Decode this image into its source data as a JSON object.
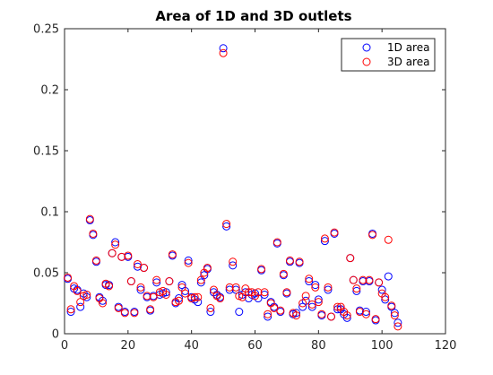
{
  "chart_data": {
    "type": "scatter",
    "title": "Area of 1D and 3D outlets",
    "xlabel": "",
    "ylabel": "",
    "xlim": [
      0,
      120
    ],
    "ylim": [
      0,
      0.25
    ],
    "x_ticks": [
      0,
      20,
      40,
      60,
      80,
      100,
      120
    ],
    "y_ticks": [
      0,
      0.05,
      0.1,
      0.15,
      0.2,
      0.25
    ],
    "x_tick_labels": [
      "0",
      "20",
      "40",
      "60",
      "80",
      "100",
      "120"
    ],
    "y_tick_labels": [
      "0",
      "0.05",
      "0.1",
      "0.15",
      "0.2",
      "0.25"
    ],
    "grid": false,
    "legend_position": "top-right",
    "marker": "open-circle",
    "series": [
      {
        "name": "1D area",
        "color": "#0000ff",
        "x": [
          1,
          2,
          3,
          4,
          5,
          6,
          7,
          8,
          9,
          10,
          11,
          12,
          13,
          14,
          15,
          16,
          17,
          18,
          19,
          20,
          21,
          22,
          23,
          24,
          25,
          26,
          27,
          28,
          29,
          30,
          31,
          32,
          33,
          34,
          35,
          36,
          37,
          38,
          39,
          40,
          41,
          42,
          43,
          44,
          45,
          46,
          47,
          48,
          49,
          50,
          51,
          52,
          53,
          54,
          55,
          56,
          57,
          58,
          59,
          60,
          61,
          62,
          63,
          64,
          65,
          66,
          67,
          68,
          69,
          70,
          71,
          72,
          73,
          74,
          75,
          76,
          77,
          78,
          79,
          80,
          81,
          82,
          83,
          84,
          85,
          86,
          87,
          88,
          89,
          90,
          91,
          92,
          93,
          94,
          95,
          96,
          97,
          98,
          99,
          100,
          101,
          102,
          103,
          104,
          105
        ],
        "y": [
          0.045,
          0.018,
          0.037,
          0.036,
          0.022,
          0.033,
          0.03,
          0.093,
          0.081,
          0.059,
          0.03,
          0.027,
          0.04,
          0.04,
          0.066,
          0.075,
          0.022,
          0.063,
          0.018,
          0.063,
          0.043,
          0.018,
          0.055,
          0.036,
          0.054,
          0.03,
          0.019,
          0.031,
          0.042,
          0.032,
          0.033,
          0.034,
          0.043,
          0.064,
          0.025,
          0.029,
          0.04,
          0.035,
          0.06,
          0.03,
          0.028,
          0.026,
          0.042,
          0.048,
          0.053,
          0.018,
          0.034,
          0.032,
          0.03,
          0.234,
          0.088,
          0.036,
          0.056,
          0.036,
          0.018,
          0.032,
          0.034,
          0.029,
          0.032,
          0.033,
          0.029,
          0.052,
          0.032,
          0.014,
          0.026,
          0.022,
          0.074,
          0.018,
          0.048,
          0.033,
          0.059,
          0.016,
          0.017,
          0.058,
          0.022,
          0.027,
          0.043,
          0.022,
          0.04,
          0.028,
          0.015,
          0.076,
          0.036,
          0.014,
          0.082,
          0.02,
          0.02,
          0.016,
          0.013,
          0.062,
          0.044,
          0.035,
          0.019,
          0.043,
          0.018,
          0.043,
          0.082,
          0.011,
          0.042,
          0.036,
          0.028,
          0.047,
          0.022,
          0.017,
          0.009
        ]
      },
      {
        "name": "3D area",
        "color": "#ff0000",
        "x": [
          1,
          2,
          3,
          4,
          5,
          6,
          7,
          8,
          9,
          10,
          11,
          12,
          13,
          14,
          15,
          16,
          17,
          18,
          19,
          20,
          21,
          22,
          23,
          24,
          25,
          26,
          27,
          28,
          29,
          30,
          31,
          32,
          33,
          34,
          35,
          36,
          37,
          38,
          39,
          40,
          41,
          42,
          43,
          44,
          45,
          46,
          47,
          48,
          49,
          50,
          51,
          52,
          53,
          54,
          55,
          56,
          57,
          58,
          59,
          60,
          61,
          62,
          63,
          64,
          65,
          66,
          67,
          68,
          69,
          70,
          71,
          72,
          73,
          74,
          75,
          76,
          77,
          78,
          79,
          80,
          81,
          82,
          83,
          84,
          85,
          86,
          87,
          88,
          89,
          90,
          91,
          92,
          93,
          94,
          95,
          96,
          97,
          98,
          99,
          100,
          101,
          102,
          103,
          104,
          105
        ],
        "y": [
          0.046,
          0.02,
          0.039,
          0.035,
          0.026,
          0.031,
          0.032,
          0.094,
          0.082,
          0.06,
          0.029,
          0.025,
          0.041,
          0.039,
          0.066,
          0.073,
          0.021,
          0.063,
          0.017,
          0.064,
          0.043,
          0.017,
          0.057,
          0.038,
          0.054,
          0.031,
          0.02,
          0.03,
          0.044,
          0.034,
          0.035,
          0.032,
          0.043,
          0.065,
          0.026,
          0.027,
          0.038,
          0.033,
          0.058,
          0.029,
          0.03,
          0.03,
          0.044,
          0.05,
          0.054,
          0.021,
          0.036,
          0.031,
          0.029,
          0.23,
          0.09,
          0.038,
          0.059,
          0.038,
          0.031,
          0.03,
          0.037,
          0.034,
          0.034,
          0.031,
          0.034,
          0.053,
          0.034,
          0.016,
          0.025,
          0.021,
          0.075,
          0.019,
          0.049,
          0.034,
          0.06,
          0.017,
          0.015,
          0.059,
          0.025,
          0.031,
          0.045,
          0.024,
          0.038,
          0.026,
          0.016,
          0.078,
          0.038,
          0.014,
          0.083,
          0.022,
          0.022,
          0.018,
          0.015,
          0.062,
          0.044,
          0.037,
          0.018,
          0.044,
          0.016,
          0.044,
          0.081,
          0.012,
          0.042,
          0.033,
          0.03,
          0.077,
          0.023,
          0.015,
          0.006
        ]
      }
    ]
  }
}
